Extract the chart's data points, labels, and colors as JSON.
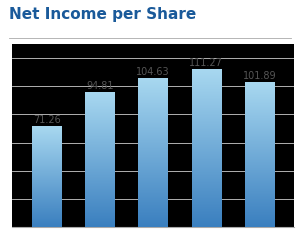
{
  "title": "Net Income per Share",
  "values": [
    71.26,
    94.81,
    104.63,
    111.27,
    101.89
  ],
  "bar_color_top": "#a8d8f0",
  "bar_color_bottom": "#3a7fbf",
  "background_color": "#ffffff",
  "plot_bg_color": "#000000",
  "text_color": "#555555",
  "title_color": "#1a5a9a",
  "grid_color": "#cccccc",
  "ylim": [
    0,
    130
  ],
  "bar_width": 0.55,
  "label_fontsize": 7.0,
  "title_fontsize": 11
}
